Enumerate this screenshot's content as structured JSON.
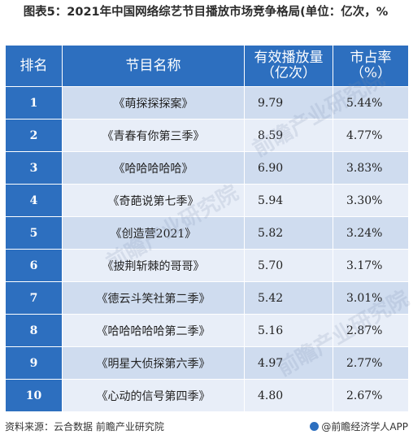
{
  "title": "图表5：2021年中国网络综艺节目播放市场竞争格局(单位：亿次，%",
  "chart_data": {
    "type": "table",
    "columns": [
      "排名",
      "节目名称",
      "有效播放量（亿次）",
      "市占率（%）"
    ],
    "rows": [
      {
        "rank": "1",
        "show": "《萌探探探案》",
        "plays": "9.79",
        "share": "5.44%"
      },
      {
        "rank": "2",
        "show": "《青春有你第三季》",
        "plays": "8.59",
        "share": "4.77%"
      },
      {
        "rank": "3",
        "show": "《哈哈哈哈哈》",
        "plays": "6.90",
        "share": "3.83%"
      },
      {
        "rank": "4",
        "show": "《奇葩说第七季》",
        "plays": "5.94",
        "share": "3.30%"
      },
      {
        "rank": "5",
        "show": "《创造营2021》",
        "plays": "5.82",
        "share": "3.24%"
      },
      {
        "rank": "6",
        "show": "《披荆斩棘的哥哥》",
        "plays": "5.70",
        "share": "3.17%"
      },
      {
        "rank": "7",
        "show": "《德云斗笑社第二季》",
        "plays": "5.42",
        "share": "3.01%"
      },
      {
        "rank": "8",
        "show": "《哈哈哈哈哈第二季》",
        "plays": "5.16",
        "share": "2.87%"
      },
      {
        "rank": "9",
        "show": "《明星大侦探第六季》",
        "plays": "4.97",
        "share": "2.77%"
      },
      {
        "rank": "10",
        "show": "《心动的信号第四季》",
        "plays": "4.80",
        "share": "2.67%"
      }
    ]
  },
  "header": {
    "rank": "排名",
    "show": "节目名称",
    "plays_line1": "有效播放量",
    "plays_line2": "（亿次）",
    "share_line1": "市占率",
    "share_line2": "（%）"
  },
  "footer": {
    "source_label": "资料来源：",
    "source_text": "云合数据 前瞻产业研究院",
    "brand": "@前瞻经济学人APP"
  },
  "watermark": "前瞻产业研究院",
  "colors": {
    "header_bg": "#2d6fbf",
    "row_light": "#e8eef8",
    "row_dark": "#cfdcef"
  }
}
